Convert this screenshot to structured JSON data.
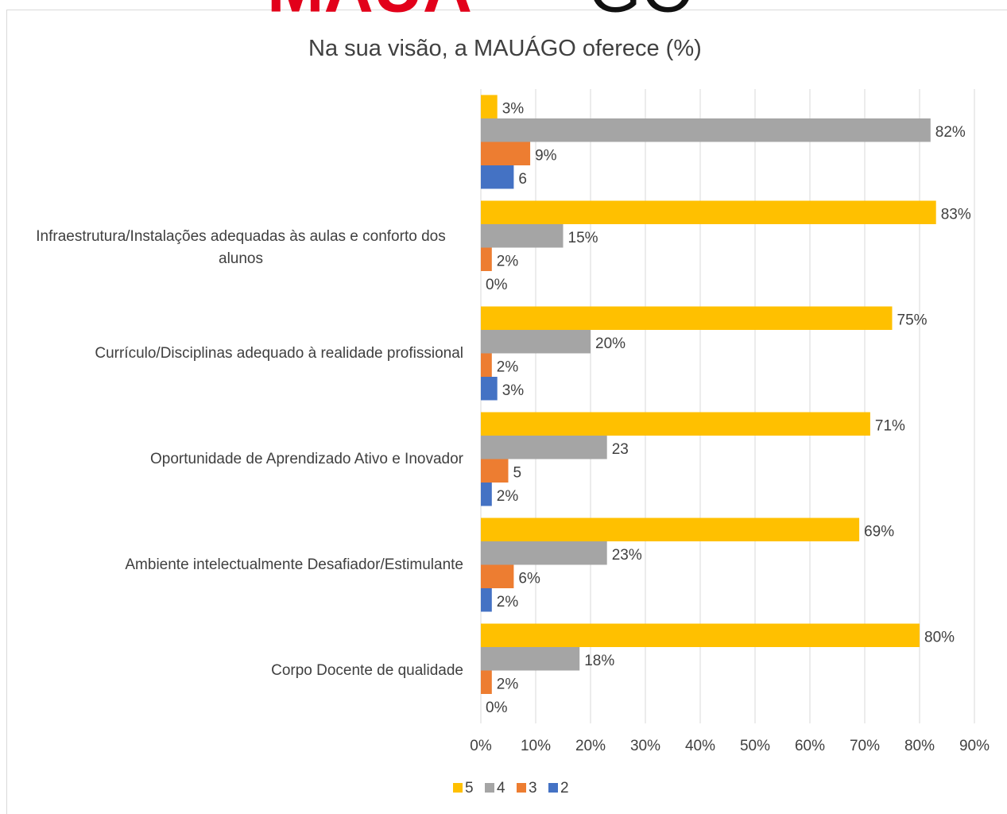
{
  "logo": [
    "MAUÁ",
    "GO"
  ],
  "chart_data": {
    "type": "barh",
    "title": "Na sua visão, a MAUÁGO oferece (%)",
    "categories": [
      null,
      "Infraestrutura/Instalações adequadas às aulas e conforto dos alunos",
      "Currículo/Disciplinas adequado à realidade profissional",
      "Oportunidade de Aprendizado Ativo e Inovador",
      "Ambiente intelectualmente Desafiador/Estimulante",
      "Corpo Docente de qualidade"
    ],
    "series": [
      {
        "name": "5",
        "color": "#FFC000",
        "values": [
          3,
          83,
          75,
          71,
          69,
          80
        ],
        "value_labels": [
          "3%",
          "83%",
          "75%",
          "71%",
          "69%",
          "80%"
        ]
      },
      {
        "name": "4",
        "color": "#A5A5A5",
        "values": [
          82,
          15,
          20,
          23,
          23,
          18
        ],
        "value_labels": [
          "82%",
          "15%",
          "20%",
          "23",
          "23%",
          "18%"
        ]
      },
      {
        "name": "3",
        "color": "#ED7D31",
        "values": [
          9,
          2,
          2,
          5,
          6,
          2
        ],
        "value_labels": [
          "9%",
          "2%",
          "2%",
          "5",
          "6%",
          "2%"
        ]
      },
      {
        "name": "2",
        "color": "#4472C4",
        "values": [
          6,
          0,
          3,
          2,
          2,
          0
        ],
        "value_labels": [
          "6",
          "0%",
          "3%",
          "2%",
          "2%",
          "0%"
        ]
      }
    ],
    "xlim": [
      0,
      90
    ],
    "xticks": [
      {
        "value": 0,
        "label": "0%"
      },
      {
        "value": 10,
        "label": "10%"
      },
      {
        "value": 20,
        "label": "20%"
      },
      {
        "value": 30,
        "label": "30%"
      },
      {
        "value": 40,
        "label": "40%"
      },
      {
        "value": 50,
        "label": "50%"
      },
      {
        "value": 60,
        "label": "60%"
      },
      {
        "value": 70,
        "label": "70%"
      },
      {
        "value": 80,
        "label": "80%"
      },
      {
        "value": 90,
        "label": "90%"
      }
    ],
    "grid": true,
    "legend": "bottom"
  }
}
